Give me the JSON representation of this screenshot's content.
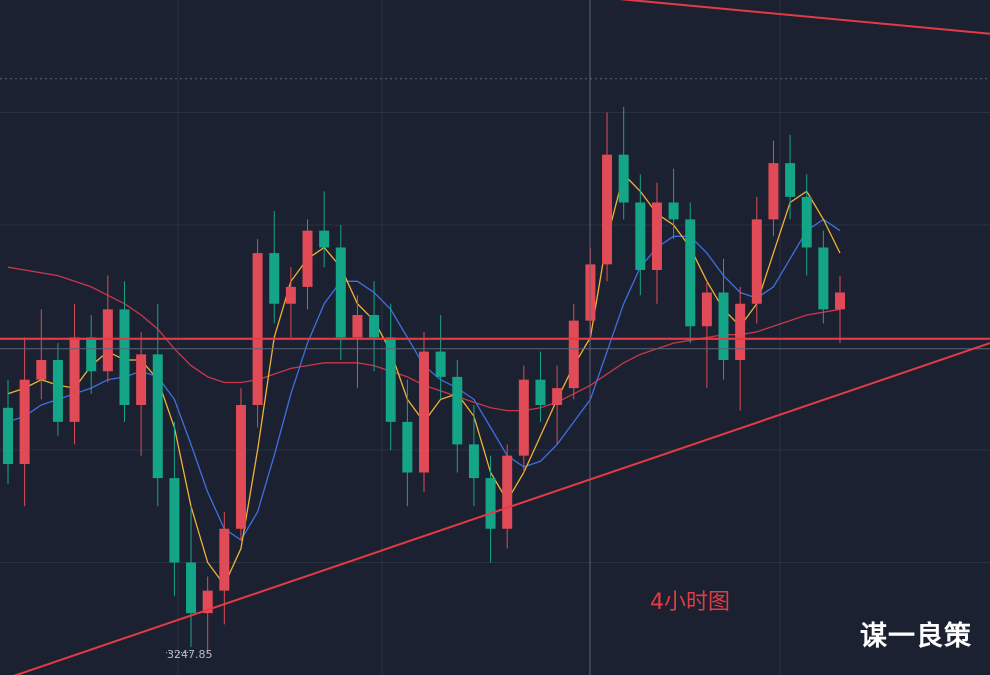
{
  "chart_data": {
    "type": "candlestick",
    "timeframe_label": "4小时图",
    "watermark": "谋一良策",
    "low_annotation": "3247.85",
    "price_range": [
      3240,
      3480
    ],
    "colors": {
      "background": "#1b2130",
      "grid": "#2a3242",
      "up": "#e04b57",
      "down": "#14a589",
      "ma_fast": "#f2b233",
      "ma_mid": "#3f6fe0",
      "ma_slow": "#c9374a",
      "trendline": "#e23b45",
      "current_price_line": "#5d6473"
    },
    "current_price": 3452.0,
    "crosshair_price": 3356.0,
    "horizontal_level": 3359.5,
    "resistance_line": [
      [
        0,
        3501
      ],
      [
        140,
        3468
      ]
    ],
    "support_line": [
      [
        0,
        3238
      ],
      [
        140,
        3358
      ]
    ],
    "candles": [
      [
        3335,
        3345,
        3308,
        3315
      ],
      [
        3315,
        3360,
        3300,
        3345
      ],
      [
        3345,
        3370,
        3338,
        3352
      ],
      [
        3352,
        3358,
        3325,
        3330
      ],
      [
        3330,
        3372,
        3322,
        3360
      ],
      [
        3360,
        3368,
        3340,
        3348
      ],
      [
        3348,
        3382,
        3344,
        3370
      ],
      [
        3370,
        3380,
        3330,
        3336
      ],
      [
        3336,
        3362,
        3318,
        3354
      ],
      [
        3354,
        3372,
        3300,
        3310
      ],
      [
        3310,
        3330,
        3268,
        3280
      ],
      [
        3280,
        3300,
        3250,
        3262
      ],
      [
        3262,
        3275,
        3248,
        3270
      ],
      [
        3270,
        3298,
        3258,
        3292
      ],
      [
        3292,
        3342,
        3288,
        3336
      ],
      [
        3336,
        3395,
        3328,
        3390
      ],
      [
        3390,
        3405,
        3365,
        3372
      ],
      [
        3372,
        3385,
        3360,
        3378
      ],
      [
        3378,
        3402,
        3370,
        3398
      ],
      [
        3398,
        3412,
        3385,
        3392
      ],
      [
        3392,
        3400,
        3352,
        3360
      ],
      [
        3360,
        3375,
        3342,
        3368
      ],
      [
        3368,
        3380,
        3348,
        3360
      ],
      [
        3360,
        3372,
        3320,
        3330
      ],
      [
        3330,
        3345,
        3300,
        3312
      ],
      [
        3312,
        3362,
        3305,
        3355
      ],
      [
        3355,
        3368,
        3338,
        3346
      ],
      [
        3346,
        3352,
        3312,
        3322
      ],
      [
        3322,
        3336,
        3300,
        3310
      ],
      [
        3310,
        3318,
        3280,
        3292
      ],
      [
        3292,
        3322,
        3285,
        3318
      ],
      [
        3318,
        3350,
        3312,
        3345
      ],
      [
        3345,
        3355,
        3330,
        3336
      ],
      [
        3336,
        3350,
        3322,
        3342
      ],
      [
        3342,
        3372,
        3338,
        3366
      ],
      [
        3366,
        3392,
        3360,
        3386
      ],
      [
        3386,
        3440,
        3380,
        3425
      ],
      [
        3425,
        3442,
        3402,
        3408
      ],
      [
        3408,
        3418,
        3375,
        3384
      ],
      [
        3384,
        3415,
        3372,
        3408
      ],
      [
        3408,
        3420,
        3395,
        3402
      ],
      [
        3402,
        3408,
        3358,
        3364
      ],
      [
        3364,
        3380,
        3342,
        3376
      ],
      [
        3376,
        3388,
        3345,
        3352
      ],
      [
        3352,
        3378,
        3334,
        3372
      ],
      [
        3372,
        3410,
        3365,
        3402
      ],
      [
        3402,
        3430,
        3396,
        3422
      ],
      [
        3422,
        3432,
        3402,
        3410
      ],
      [
        3410,
        3418,
        3382,
        3392
      ],
      [
        3392,
        3398,
        3365,
        3370
      ],
      [
        3370,
        3382,
        3358,
        3376
      ]
    ],
    "ma_fast": [
      3340,
      3342,
      3345,
      3343,
      3342,
      3350,
      3355,
      3352,
      3352,
      3345,
      3328,
      3300,
      3280,
      3272,
      3285,
      3320,
      3360,
      3380,
      3388,
      3392,
      3385,
      3372,
      3366,
      3355,
      3338,
      3330,
      3338,
      3340,
      3332,
      3312,
      3302,
      3312,
      3325,
      3338,
      3350,
      3360,
      3395,
      3418,
      3412,
      3404,
      3400,
      3392,
      3380,
      3370,
      3364,
      3372,
      3390,
      3408,
      3412,
      3402,
      3390
    ],
    "ma_mid": [
      3330,
      3332,
      3336,
      3338,
      3340,
      3342,
      3345,
      3346,
      3348,
      3346,
      3338,
      3322,
      3305,
      3292,
      3288,
      3298,
      3318,
      3340,
      3358,
      3372,
      3380,
      3380,
      3376,
      3370,
      3360,
      3350,
      3345,
      3342,
      3338,
      3328,
      3318,
      3314,
      3316,
      3322,
      3330,
      3338,
      3355,
      3372,
      3385,
      3392,
      3396,
      3396,
      3390,
      3382,
      3376,
      3374,
      3378,
      3388,
      3398,
      3402,
      3398
    ],
    "ma_slow": [
      3385,
      3384,
      3383,
      3382,
      3380,
      3378,
      3375,
      3372,
      3368,
      3363,
      3356,
      3350,
      3346,
      3344,
      3344,
      3345,
      3347,
      3349,
      3350,
      3351,
      3351,
      3351,
      3350,
      3348,
      3346,
      3343,
      3341,
      3339,
      3337,
      3335,
      3334,
      3334,
      3335,
      3337,
      3340,
      3343,
      3347,
      3351,
      3354,
      3356,
      3358,
      3359,
      3360,
      3361,
      3361,
      3362,
      3364,
      3366,
      3368,
      3369,
      3370
    ]
  }
}
